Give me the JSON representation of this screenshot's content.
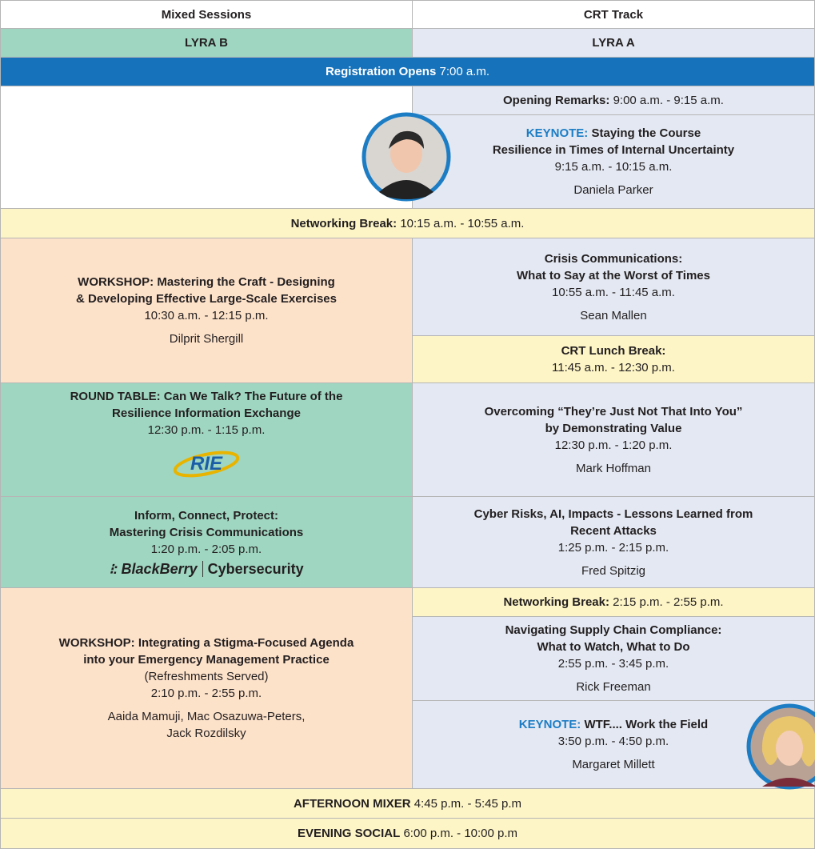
{
  "header": {
    "left": "Mixed Sessions",
    "right": "CRT Track"
  },
  "rooms": {
    "left": "LYRA B",
    "right": "LYRA A"
  },
  "registration": {
    "label": "Registration Opens",
    "time": "7:00 a.m."
  },
  "opening": {
    "label": "Opening Remarks:",
    "time": "9:00 a.m. - 9:15 a.m."
  },
  "keynote1": {
    "tag": "KEYNOTE:",
    "title_lines": [
      "Staying the Course",
      "Resilience in Times of Internal Uncertainty"
    ],
    "time": "9:15 a.m. - 10:15 a.m.",
    "speaker": "Daniela Parker"
  },
  "break1": {
    "label": "Networking Break:",
    "time": "10:15 a.m. - 10:55 a.m."
  },
  "workshop1": {
    "title_lines": [
      "WORKSHOP: Mastering the Craft - Designing",
      "& Developing Effective Large-Scale Exercises"
    ],
    "time": "10:30 a.m. - 12:15 p.m.",
    "speaker": "Dilprit Shergill"
  },
  "crisis": {
    "title_lines": [
      "Crisis Communications:",
      "What to Say at the Worst of Times"
    ],
    "time": "10:55 a.m. - 11:45 a.m.",
    "speaker": "Sean Mallen"
  },
  "lunch": {
    "label": "CRT Lunch Break:",
    "time": "11:45 a.m. - 12:30 p.m."
  },
  "roundtable": {
    "title_lines": [
      "ROUND TABLE: Can We Talk? The Future of the",
      "Resilience Information Exchange"
    ],
    "time": "12:30 p.m. - 1:15 p.m.",
    "logo": "RIE"
  },
  "overcoming": {
    "title_lines": [
      "Overcoming “They’re Just Not That Into You”",
      "by Demonstrating Value"
    ],
    "time": "12:30 p.m. - 1:20 p.m.",
    "speaker": "Mark Hoffman"
  },
  "inform": {
    "title_lines": [
      "Inform, Connect, Protect:",
      "Mastering Crisis Communications"
    ],
    "time": "1:20 p.m. - 2:05 p.m.",
    "logo": "BlackBerry",
    "logo_suffix": "Cybersecurity"
  },
  "cyber": {
    "title_lines": [
      "Cyber Risks, AI, Impacts - Lessons Learned from",
      "Recent Attacks"
    ],
    "time": "1:25 p.m. - 2:15 p.m.",
    "speaker": "Fred Spitzig"
  },
  "workshop2": {
    "title_lines": [
      "WORKSHOP: Integrating a Stigma-Focused Agenda",
      "into your Emergency Management Practice"
    ],
    "note": "(Refreshments Served)",
    "time": "2:10 p.m. - 2:55 p.m.",
    "speaker_lines": [
      "Aaida Mamuji, Mac Osazuwa-Peters,",
      "Jack Rozdilsky"
    ]
  },
  "break2": {
    "label": "Networking Break:",
    "time": "2:15 p.m. - 2:55 p.m."
  },
  "supply": {
    "title_lines": [
      "Navigating Supply Chain Compliance:",
      "What to Watch, What to Do"
    ],
    "time": "2:55 p.m. - 3:45 p.m.",
    "speaker": "Rick Freeman"
  },
  "keynote2": {
    "tag": "KEYNOTE:",
    "title": "WTF.... Work the Field",
    "time": "3:50 p.m. - 4:50 p.m.",
    "speaker": "Margaret Millett"
  },
  "mixer": {
    "label": "AFTERNOON MIXER",
    "time": "4:45 p.m. - 5:45 p.m"
  },
  "social": {
    "label": "EVENING SOCIAL",
    "time": "6:00 p.m. - 10:00 p.m"
  }
}
